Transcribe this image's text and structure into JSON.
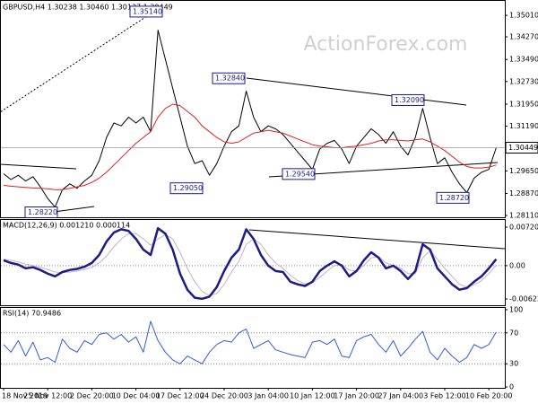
{
  "watermark": "ActionForex.com",
  "chart_data": [
    {
      "type": "line",
      "title": "GBPUSD,H4  1.30238 1.30460 1.30137 1.30449",
      "ylim": [
        1.2805,
        1.3554
      ],
      "yticks": [
        {
          "value": 1.3501,
          "label": "1.35010"
        },
        {
          "value": 1.3427,
          "label": "1.34270"
        },
        {
          "value": 1.3349,
          "label": "1.33490"
        },
        {
          "value": 1.3273,
          "label": "1.32730"
        },
        {
          "value": 1.3195,
          "label": "1.31950"
        },
        {
          "value": 1.3119,
          "label": "1.31190"
        },
        {
          "value": 1.2965,
          "label": "1.29650"
        },
        {
          "value": 1.2887,
          "label": "1.28870"
        },
        {
          "value": 1.2811,
          "label": "1.28110"
        }
      ],
      "last_price": {
        "value": 1.30449,
        "label": "1.30449"
      },
      "level_lines": false,
      "annotations": [
        {
          "value": 1.3514,
          "label": "1.35140"
        },
        {
          "value": 1.3284,
          "label": "1.32840"
        },
        {
          "value": 1.3209,
          "label": "1.32090"
        },
        {
          "value": 1.2954,
          "label": "1.29540"
        },
        {
          "value": 1.2905,
          "label": "1.29050"
        },
        {
          "value": 1.2872,
          "label": "1.28720"
        },
        {
          "value": 1.2822,
          "label": "1.28220"
        }
      ],
      "series": [
        {
          "color": "#000000",
          "width": 1,
          "values": [
            1.2955,
            1.2935,
            1.295,
            1.293,
            1.2945,
            1.291,
            1.287,
            1.284,
            1.29,
            1.292,
            1.2905,
            1.293,
            1.295,
            1.3,
            1.308,
            1.313,
            1.312,
            1.315,
            1.313,
            1.315,
            1.31,
            1.345,
            1.335,
            1.325,
            1.315,
            1.305,
            1.299,
            1.3,
            1.295,
            1.299,
            1.305,
            1.31,
            1.312,
            1.324,
            1.315,
            1.31,
            1.312,
            1.311,
            1.309,
            1.306,
            1.303,
            1.3,
            1.297,
            1.304,
            1.306,
            1.307,
            1.304,
            1.299,
            1.305,
            1.308,
            1.311,
            1.309,
            1.306,
            1.31,
            1.305,
            1.302,
            1.308,
            1.318,
            1.308,
            1.299,
            1.301,
            1.296,
            1.292,
            1.289,
            1.294,
            1.296,
            1.297,
            1.3045
          ]
        },
        {
          "color": "#e3211c",
          "width": 1,
          "values": [
            1.2915,
            1.2912,
            1.291,
            1.2908,
            1.2906,
            1.2905,
            1.2903,
            1.29,
            1.29,
            1.2905,
            1.291,
            1.2915,
            1.2925,
            1.294,
            1.296,
            1.2985,
            1.301,
            1.3035,
            1.306,
            1.308,
            1.31,
            1.315,
            1.318,
            1.3195,
            1.319,
            1.317,
            1.315,
            1.312,
            1.31,
            1.308,
            1.3065,
            1.306,
            1.3065,
            1.308,
            1.3095,
            1.31,
            1.3105,
            1.31,
            1.3095,
            1.3085,
            1.3075,
            1.3065,
            1.3055,
            1.305,
            1.3048,
            1.3045,
            1.3045,
            1.3048,
            1.305,
            1.3055,
            1.306,
            1.3068,
            1.3072,
            1.3072,
            1.307,
            1.3068,
            1.3072,
            1.3075,
            1.3065,
            1.305,
            1.3035,
            1.3015,
            1.2995,
            1.298,
            1.2975,
            1.2975,
            1.2978,
            1.2985
          ]
        }
      ]
    },
    {
      "type": "line",
      "title": "MACD(12,26,9) 0.001210 0.000114",
      "ylim": [
        -0.006229,
        0.007201
      ],
      "yticks": [
        {
          "value": 0.007201,
          "label": "0.007201"
        },
        {
          "value": 0,
          "label": "0.00"
        },
        {
          "value": -0.006229,
          "label": "-0.006229"
        }
      ],
      "level_lines": true,
      "series": [
        {
          "color": "#c4b2c9",
          "width": 1,
          "values": [
            0.0012,
            0.001,
            0.0007,
            0.0003,
            0.0,
            -0.0003,
            -0.0007,
            -0.0012,
            -0.0013,
            -0.0012,
            -0.001,
            -0.0007,
            -0.0003,
            0.0005,
            0.0018,
            0.0035,
            0.005,
            0.006,
            0.006,
            0.005,
            0.0038,
            0.005,
            0.0058,
            0.005,
            0.0025,
            -0.0005,
            -0.003,
            -0.0048,
            -0.0056,
            -0.0052,
            -0.0035,
            -0.0012,
            0.0008,
            0.004,
            0.005,
            0.004,
            0.002,
            0.0005,
            -0.0005,
            -0.0018,
            -0.0028,
            -0.0034,
            -0.0032,
            -0.0022,
            -0.001,
            0.0,
            0.0002,
            -0.0008,
            -0.001,
            0.0,
            0.0015,
            0.0017,
            0.0005,
            0.0,
            -0.0005,
            -0.0015,
            -0.0015,
            0.0015,
            0.0028,
            0.0012,
            -0.0005,
            -0.002,
            -0.0035,
            -0.004,
            -0.0036,
            -0.0028,
            -0.0015,
            0.0001
          ]
        },
        {
          "color": "#1b1b8a",
          "width": 2.5,
          "values": [
            0.001,
            0.0005,
            0.0002,
            -0.0005,
            -0.0003,
            -0.0008,
            -0.0015,
            -0.002,
            -0.0012,
            -0.0008,
            -0.0006,
            -0.0002,
            0.0005,
            0.002,
            0.0045,
            0.0062,
            0.0068,
            0.0065,
            0.005,
            0.003,
            0.002,
            0.007,
            0.006,
            0.003,
            -0.0015,
            -0.0045,
            -0.006,
            -0.0062,
            -0.0058,
            -0.004,
            -0.001,
            0.0015,
            0.003,
            0.0068,
            0.005,
            0.002,
            0.0,
            -0.001,
            -0.0012,
            -0.003,
            -0.0035,
            -0.0038,
            -0.003,
            -0.001,
            0.0,
            0.0008,
            0.0,
            -0.002,
            -0.001,
            0.001,
            0.0025,
            0.0015,
            -0.0005,
            0.0,
            -0.001,
            -0.0025,
            -0.001,
            0.004,
            0.003,
            -0.0005,
            -0.002,
            -0.0035,
            -0.0045,
            -0.0042,
            -0.003,
            -0.002,
            -0.0005,
            0.0012
          ]
        }
      ]
    },
    {
      "type": "line",
      "title": "RSI(14) 70.9486",
      "ylim": [
        0,
        100
      ],
      "yticks": [
        100,
        70,
        30,
        0
      ],
      "level_lines": true,
      "categories": [
        "18 Nov 2019",
        null,
        null,
        null,
        null,
        null,
        "25 Nov 12:00",
        null,
        null,
        null,
        null,
        null,
        "2 Dec 20:00",
        null,
        null,
        null,
        null,
        null,
        "10 Dec 04:00",
        null,
        null,
        null,
        null,
        null,
        "17 Dec 12:00",
        null,
        null,
        null,
        null,
        null,
        "24 Dec 20:00",
        null,
        null,
        null,
        null,
        null,
        "3 Jan 04:00",
        null,
        null,
        null,
        null,
        null,
        "10 Jan 12:00",
        null,
        null,
        null,
        null,
        null,
        "17 Jan 20:00",
        null,
        null,
        null,
        null,
        null,
        "27 Jan 04:00",
        null,
        null,
        null,
        null,
        null,
        "3 Feb 12:00",
        null,
        null,
        null,
        null,
        null,
        "10 Feb 20:00",
        null
      ],
      "series": [
        {
          "color": "#2f5fd0",
          "width": 1,
          "values": [
            55,
            45,
            60,
            40,
            58,
            35,
            38,
            32,
            62,
            50,
            45,
            60,
            55,
            68,
            70,
            62,
            68,
            58,
            65,
            45,
            85,
            60,
            45,
            35,
            30,
            40,
            35,
            30,
            45,
            55,
            60,
            58,
            70,
            75,
            50,
            55,
            60,
            48,
            45,
            42,
            40,
            38,
            58,
            60,
            55,
            62,
            40,
            38,
            60,
            65,
            68,
            55,
            45,
            60,
            40,
            50,
            62,
            72,
            45,
            35,
            50,
            40,
            32,
            38,
            55,
            50,
            55,
            71
          ]
        }
      ]
    }
  ]
}
